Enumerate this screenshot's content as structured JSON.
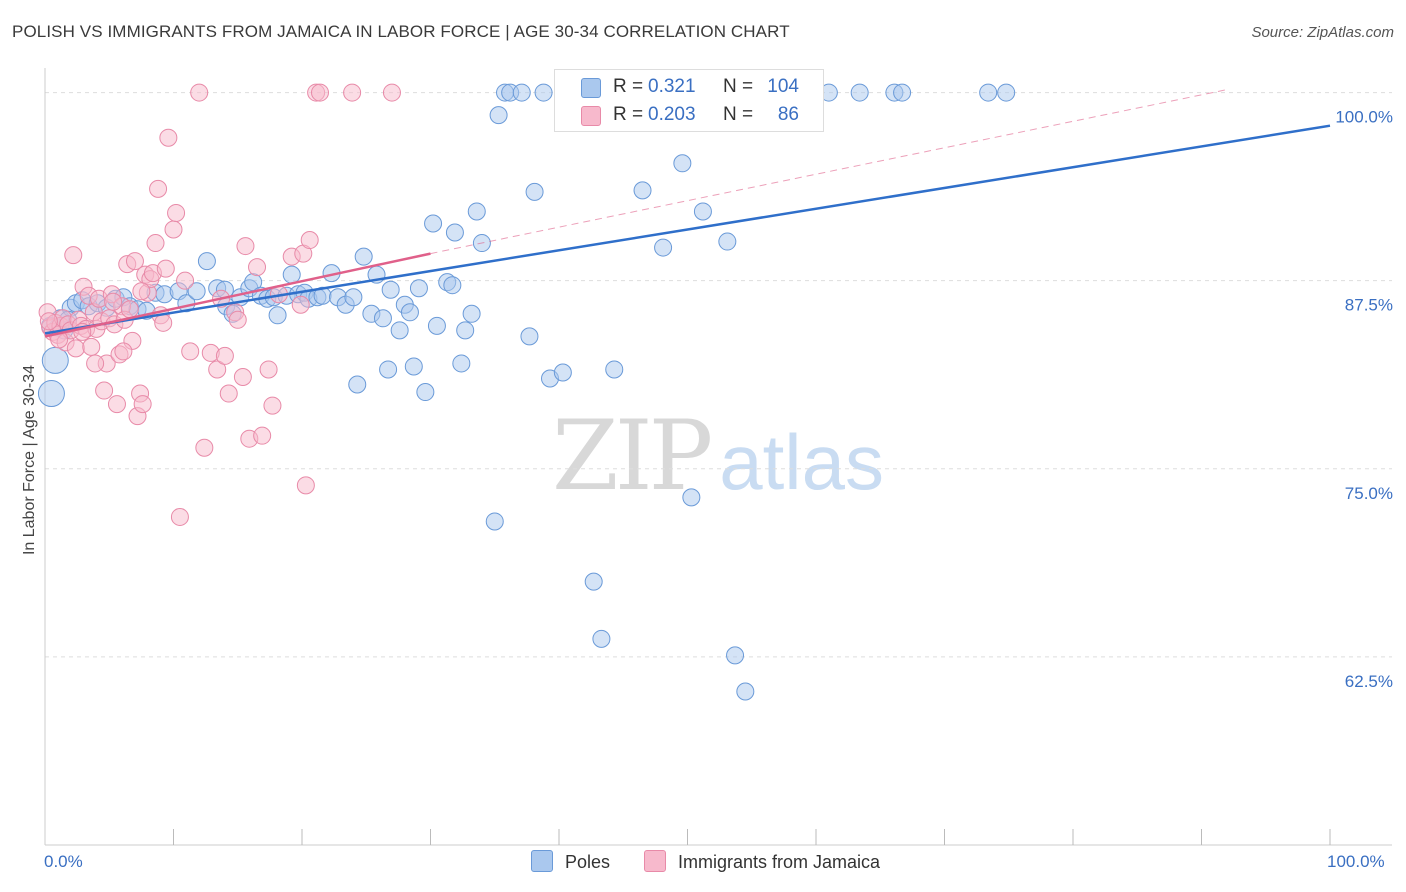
{
  "header": {
    "title": "POLISH VS IMMIGRANTS FROM JAMAICA IN LABOR FORCE | AGE 30-34 CORRELATION CHART",
    "source": "Source: ZipAtlas.com"
  },
  "watermark": {
    "zip": "ZIP",
    "atlas": "atlas"
  },
  "colors": {
    "poles_fill": "#aac8ee",
    "poles_stroke": "#6a9ad8",
    "poles_line": "#2f6fca",
    "jamaica_fill": "#f7b9cc",
    "jamaica_stroke": "#e88aa8",
    "jamaica_line": "#e0608a",
    "tick_label": "#3a6fc2",
    "grid": "#dddddd"
  },
  "legend": {
    "poles": {
      "r_label": "R =",
      "r_value": "0.321",
      "n_label": "N =",
      "n_value": "104"
    },
    "jamaica": {
      "r_label": "R =",
      "r_value": "0.203",
      "n_label": "N =",
      "n_value": "86"
    }
  },
  "bottom_legend": {
    "poles": "Poles",
    "jamaica": "Immigrants from Jamaica"
  },
  "chart_data": {
    "type": "scatter",
    "title": "POLISH VS IMMIGRANTS FROM JAMAICA IN LABOR FORCE | AGE 30-34 CORRELATION CHART",
    "xlabel": "",
    "ylabel": "In Labor Force | Age 30-34",
    "xlim": [
      0,
      100
    ],
    "ylim": [
      50,
      101.5
    ],
    "x_tick_labels": [
      "0.0%",
      "100.0%"
    ],
    "y_ticks": [
      62.5,
      75.0,
      87.5,
      100.0
    ],
    "y_tick_labels": [
      "62.5%",
      "75.0%",
      "87.5%",
      "100.0%"
    ],
    "grid": true,
    "series": [
      {
        "name": "Poles",
        "trend": {
          "x": [
            0,
            100
          ],
          "y": [
            84.0,
            97.8
          ],
          "style": "solid"
        },
        "points": [
          [
            0.5,
            80.0
          ],
          [
            0.8,
            82.2
          ],
          [
            1.0,
            84.4
          ],
          [
            1.2,
            85.0
          ],
          [
            1.5,
            84.2
          ],
          [
            2.0,
            85.7
          ],
          [
            2.4,
            86.0
          ],
          [
            2.9,
            86.2
          ],
          [
            3.4,
            85.8
          ],
          [
            4.1,
            86.0
          ],
          [
            4.8,
            85.7
          ],
          [
            5.5,
            86.3
          ],
          [
            6.1,
            86.4
          ],
          [
            6.6,
            85.8
          ],
          [
            7.2,
            85.6
          ],
          [
            7.9,
            85.5
          ],
          [
            8.6,
            86.7
          ],
          [
            9.3,
            86.6
          ],
          [
            10.4,
            86.8
          ],
          [
            11.0,
            86.0
          ],
          [
            11.8,
            86.8
          ],
          [
            12.6,
            88.8
          ],
          [
            13.4,
            87.0
          ],
          [
            14.0,
            86.9
          ],
          [
            14.1,
            85.8
          ],
          [
            14.6,
            85.3
          ],
          [
            15.2,
            86.4
          ],
          [
            15.9,
            87.0
          ],
          [
            16.2,
            87.4
          ],
          [
            16.8,
            86.5
          ],
          [
            17.3,
            86.3
          ],
          [
            17.8,
            86.4
          ],
          [
            18.1,
            85.2
          ],
          [
            18.8,
            86.5
          ],
          [
            19.2,
            87.9
          ],
          [
            19.7,
            86.6
          ],
          [
            20.2,
            86.7
          ],
          [
            20.5,
            86.3
          ],
          [
            21.2,
            86.4
          ],
          [
            21.6,
            86.5
          ],
          [
            22.3,
            88.0
          ],
          [
            22.8,
            86.4
          ],
          [
            23.4,
            85.9
          ],
          [
            24.0,
            86.4
          ],
          [
            24.3,
            80.6
          ],
          [
            24.8,
            89.1
          ],
          [
            25.4,
            85.3
          ],
          [
            25.8,
            87.9
          ],
          [
            26.3,
            85.0
          ],
          [
            26.7,
            81.6
          ],
          [
            26.9,
            86.9
          ],
          [
            27.6,
            84.2
          ],
          [
            28.0,
            85.9
          ],
          [
            28.4,
            85.4
          ],
          [
            28.7,
            81.8
          ],
          [
            29.1,
            87.0
          ],
          [
            29.6,
            80.1
          ],
          [
            30.2,
            91.3
          ],
          [
            30.5,
            84.5
          ],
          [
            31.3,
            87.4
          ],
          [
            31.7,
            87.2
          ],
          [
            31.9,
            90.7
          ],
          [
            32.4,
            82.0
          ],
          [
            32.7,
            84.2
          ],
          [
            33.2,
            85.3
          ],
          [
            33.6,
            92.1
          ],
          [
            34.0,
            90.0
          ],
          [
            35.0,
            71.5
          ],
          [
            35.3,
            98.5
          ],
          [
            35.8,
            100.0
          ],
          [
            36.2,
            100.0
          ],
          [
            37.1,
            100.0
          ],
          [
            37.7,
            83.8
          ],
          [
            38.1,
            93.4
          ],
          [
            38.8,
            100.0
          ],
          [
            39.3,
            81.0
          ],
          [
            40.3,
            81.4
          ],
          [
            41.1,
            100.0
          ],
          [
            42.1,
            100.0
          ],
          [
            42.7,
            67.5
          ],
          [
            43.3,
            63.7
          ],
          [
            44.3,
            81.6
          ],
          [
            45.6,
            100.0
          ],
          [
            46.0,
            100.0
          ],
          [
            46.5,
            93.5
          ],
          [
            47.8,
            100.0
          ],
          [
            48.1,
            89.7
          ],
          [
            49.6,
            95.3
          ],
          [
            50.3,
            73.1
          ],
          [
            51.2,
            92.1
          ],
          [
            53.1,
            90.1
          ],
          [
            53.7,
            62.6
          ],
          [
            54.5,
            60.2
          ],
          [
            55.3,
            100.0
          ],
          [
            57.0,
            100.0
          ],
          [
            57.8,
            100.0
          ],
          [
            61.0,
            100.0
          ],
          [
            63.4,
            100.0
          ],
          [
            66.1,
            100.0
          ],
          [
            66.7,
            100.0
          ],
          [
            73.4,
            100.0
          ],
          [
            74.8,
            100.0
          ],
          [
            0.4,
            84.5
          ],
          [
            1.8,
            84.9
          ]
        ]
      },
      {
        "name": "Immigrants from Jamaica",
        "trend": {
          "x": [
            0,
            30
          ],
          "y": [
            83.8,
            89.3
          ],
          "style": "solid",
          "extension": {
            "x": [
              30,
              92
            ],
            "y": [
              89.3,
              100.2
            ],
            "style": "dashed"
          }
        },
        "points": [
          [
            0.2,
            85.4
          ],
          [
            0.4,
            84.4
          ],
          [
            0.6,
            84.1
          ],
          [
            0.8,
            84.7
          ],
          [
            1.0,
            83.9
          ],
          [
            1.2,
            84.5
          ],
          [
            1.4,
            85.0
          ],
          [
            1.6,
            83.4
          ],
          [
            1.8,
            84.6
          ],
          [
            2.0,
            84.2
          ],
          [
            2.2,
            89.2
          ],
          [
            2.4,
            83.0
          ],
          [
            2.6,
            84.9
          ],
          [
            2.8,
            84.5
          ],
          [
            3.0,
            87.1
          ],
          [
            3.2,
            84.3
          ],
          [
            3.4,
            86.5
          ],
          [
            3.6,
            83.1
          ],
          [
            3.8,
            85.4
          ],
          [
            4.0,
            84.3
          ],
          [
            4.2,
            86.3
          ],
          [
            4.4,
            84.8
          ],
          [
            4.6,
            80.2
          ],
          [
            4.8,
            82.0
          ],
          [
            5.0,
            85.0
          ],
          [
            5.2,
            86.6
          ],
          [
            5.4,
            84.6
          ],
          [
            5.6,
            79.3
          ],
          [
            5.8,
            82.6
          ],
          [
            6.0,
            85.8
          ],
          [
            6.2,
            84.9
          ],
          [
            6.4,
            88.6
          ],
          [
            6.6,
            85.6
          ],
          [
            6.8,
            83.5
          ],
          [
            7.0,
            88.8
          ],
          [
            7.2,
            78.5
          ],
          [
            7.4,
            80.0
          ],
          [
            7.6,
            79.3
          ],
          [
            7.8,
            87.9
          ],
          [
            8.0,
            86.7
          ],
          [
            8.2,
            87.6
          ],
          [
            8.4,
            88.0
          ],
          [
            8.6,
            90.0
          ],
          [
            8.8,
            93.6
          ],
          [
            9.0,
            85.2
          ],
          [
            9.2,
            84.7
          ],
          [
            9.6,
            97.0
          ],
          [
            10.0,
            90.9
          ],
          [
            10.2,
            92.0
          ],
          [
            10.5,
            71.8
          ],
          [
            10.9,
            87.5
          ],
          [
            11.3,
            82.8
          ],
          [
            12.0,
            100.0
          ],
          [
            12.4,
            76.4
          ],
          [
            12.9,
            82.7
          ],
          [
            13.4,
            81.6
          ],
          [
            13.7,
            86.3
          ],
          [
            14.0,
            82.5
          ],
          [
            14.3,
            80.0
          ],
          [
            14.8,
            85.4
          ],
          [
            15.0,
            84.9
          ],
          [
            15.4,
            81.1
          ],
          [
            15.6,
            89.8
          ],
          [
            15.9,
            77.0
          ],
          [
            16.5,
            88.4
          ],
          [
            16.9,
            77.2
          ],
          [
            17.4,
            81.6
          ],
          [
            17.7,
            79.2
          ],
          [
            18.2,
            86.6
          ],
          [
            19.2,
            89.1
          ],
          [
            19.9,
            85.9
          ],
          [
            20.1,
            89.3
          ],
          [
            20.3,
            73.9
          ],
          [
            20.6,
            90.2
          ],
          [
            21.1,
            100.0
          ],
          [
            21.4,
            100.0
          ],
          [
            23.9,
            100.0
          ],
          [
            27.0,
            100.0
          ],
          [
            3.9,
            82.0
          ],
          [
            6.1,
            82.8
          ],
          [
            9.4,
            88.3
          ],
          [
            1.1,
            83.6
          ],
          [
            2.9,
            84.1
          ],
          [
            0.3,
            84.8
          ],
          [
            5.3,
            86.1
          ],
          [
            7.5,
            86.8
          ]
        ]
      }
    ]
  }
}
